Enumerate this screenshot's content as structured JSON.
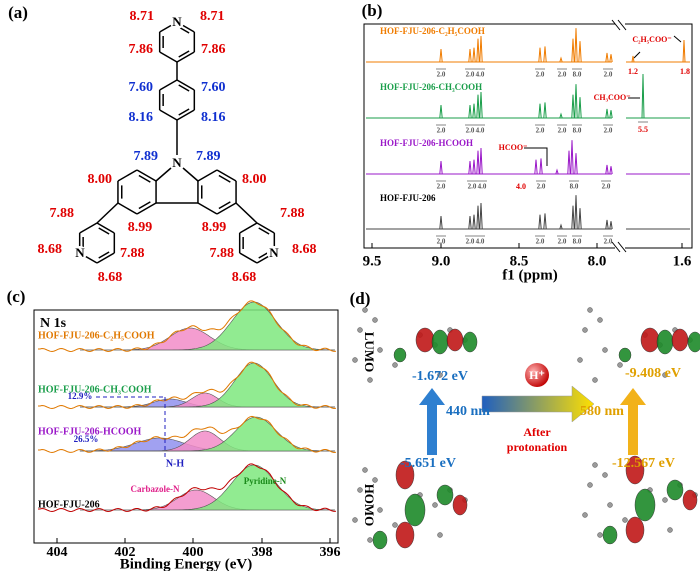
{
  "panel_a": {
    "label": "(a)",
    "atoms": [
      "N",
      "N",
      "N",
      "N"
    ],
    "shifts": [
      "8.71",
      "8.71",
      "7.86",
      "7.86",
      "7.60",
      "7.60",
      "8.16",
      "8.16",
      "7.89",
      "7.89",
      "8.00",
      "8.00",
      "8.99",
      "8.99",
      "7.88",
      "8.68",
      "7.88",
      "8.68",
      "7.88",
      "8.68",
      "7.88",
      "8.68"
    ]
  },
  "panel_b": {
    "label": "(b)",
    "traces": [
      {
        "name": "HOF-FJU-206-C₂H₅COOH",
        "integrals": [
          "2.0",
          "2.0",
          "4.0",
          "2.0",
          "2.0",
          "8.0",
          "2.0"
        ]
      },
      {
        "name": "HOF-FJU-206-CH₃COOH",
        "integrals": [
          "2.0",
          "2.0",
          "4.0",
          "2.0",
          "2.0",
          "8.0",
          "2.0"
        ]
      },
      {
        "name": "HOF-FJU-206-HCOOH",
        "integrals": [
          "2.0",
          "2.0",
          "4.0",
          "2.0",
          "8.0",
          "2.0"
        ]
      },
      {
        "name": "HOF-FJU-206",
        "integrals": [
          "2.0",
          "2.0",
          "4.0",
          "2.0",
          "2.0",
          "8.0",
          "2.0"
        ]
      }
    ],
    "annotations": [
      "C₂H₅COO⁻",
      "1.2",
      "1.8",
      "CH₃COO⁻",
      "5.5",
      "HCOO⁻",
      "4.0"
    ],
    "xticks": [
      "9.5",
      "9.0",
      "8.5",
      "8.0",
      "1.6"
    ],
    "xlabel": "f1 (ppm)"
  },
  "panel_c": {
    "label": "(c)",
    "title": "N 1s",
    "traces": [
      "HOF-FJU-206-C₂H₅COOH",
      "HOF-FJU-206-CH₃COOH",
      "HOF-FJU-206-HCOOH",
      "HOF-FJU-206"
    ],
    "annotations": [
      "12.9%",
      "26.5%",
      "N-H",
      "Carbazole-N",
      "Pyridine-N"
    ],
    "xticks": [
      "404",
      "402",
      "400",
      "398",
      "396"
    ],
    "xlabel": "Binding Energy (eV)"
  },
  "panel_d": {
    "label": "(d)",
    "orbitals": [
      "LUMO",
      "HOMO"
    ],
    "energies": [
      "-1.672 eV",
      "-5.651 eV",
      "-9.408 eV",
      "-12.567 eV"
    ],
    "gaps": [
      "440 nm",
      "580 nm"
    ],
    "proton": "H⁺",
    "arrow_text": [
      "After",
      "protonation"
    ]
  }
}
